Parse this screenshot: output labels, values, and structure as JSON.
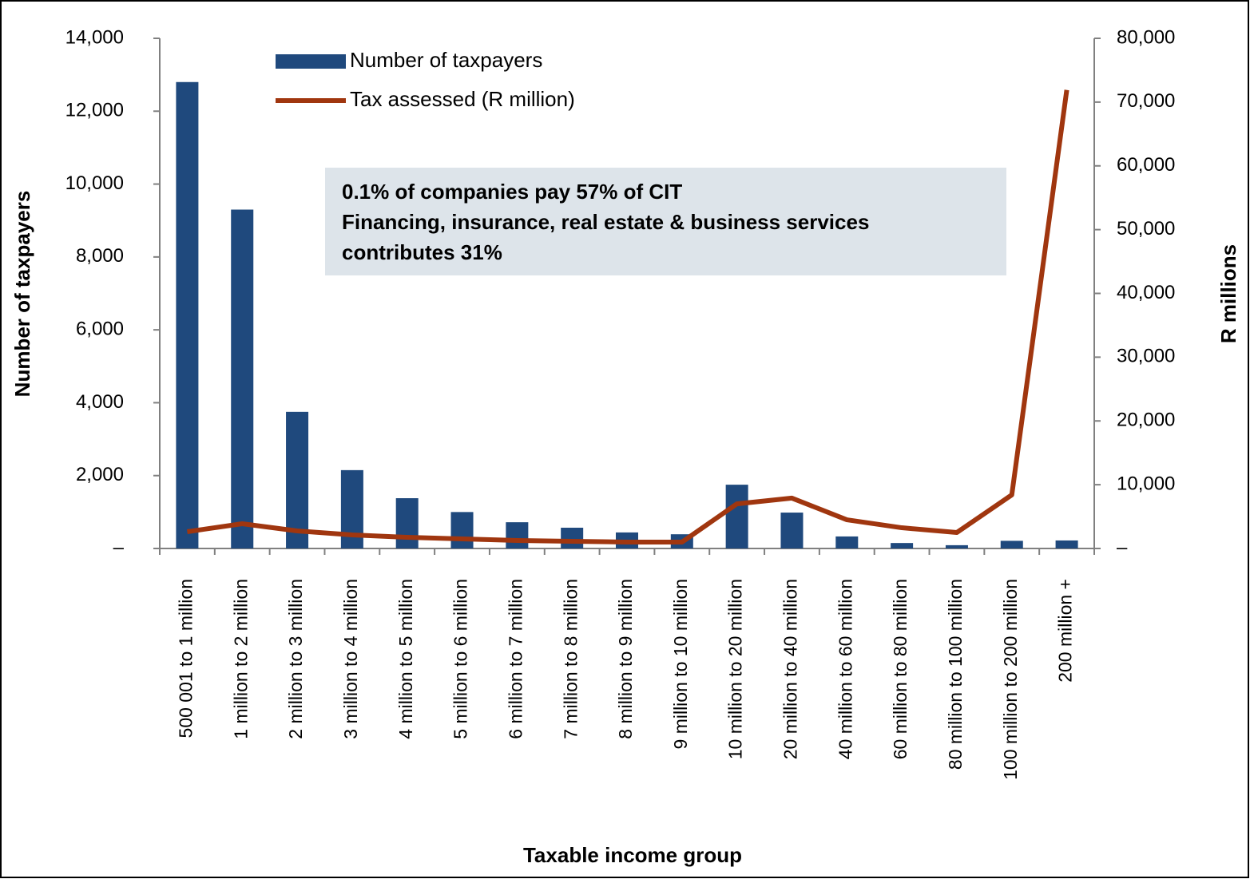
{
  "chart_data": {
    "type": "bar_line",
    "x_label": "Taxable income group",
    "y_label": "Number of taxpayers",
    "y2_label": "R millions",
    "annotations": [
      "0.1% of companies pay 57% of CIT",
      "Financing, insurance, real estate & business services",
      "contributes 31%"
    ],
    "categories": [
      "500 001 to 1 million",
      "1 million to 2 million",
      "2 million to 3 million",
      "3 million to 4 million",
      "4 million to 5 million",
      "5 million to 6 million",
      "6 million to 7 million",
      "7 million to 8 million",
      "8 million to 9 million",
      "9 million to 10 million",
      "10 million to 20 million",
      "20 million to 40 million",
      "40 million to 60 million",
      "60 million to 80 million",
      "80 million to 100 million",
      "100 million to 200 million",
      "200 million  +"
    ],
    "series": [
      {
        "name": "Number of taxpayers",
        "type": "bar",
        "color": "#1f497d",
        "values": [
          12800,
          9300,
          3750,
          2150,
          1380,
          1000,
          720,
          570,
          440,
          390,
          1750,
          985,
          330,
          150,
          90,
          210,
          220
        ]
      },
      {
        "name": "Tax assessed (R million)",
        "type": "line",
        "axis": "y2",
        "color": "#a0360f",
        "values": [
          2630,
          3880,
          2750,
          2130,
          1750,
          1500,
          1250,
          1130,
          1000,
          1000,
          7000,
          7900,
          4500,
          3250,
          2500,
          8400,
          71900
        ]
      }
    ],
    "ylim": [
      0,
      14000
    ],
    "yticks": [
      {
        "value": 0,
        "label": "–"
      },
      {
        "value": 2000,
        "label": "2,000"
      },
      {
        "value": 4000,
        "label": "4,000"
      },
      {
        "value": 6000,
        "label": "6,000"
      },
      {
        "value": 8000,
        "label": "8,000"
      },
      {
        "value": 10000,
        "label": "10,000"
      },
      {
        "value": 12000,
        "label": "12,000"
      },
      {
        "value": 14000,
        "label": "14,000"
      }
    ],
    "y2lim": [
      0,
      80000
    ],
    "y2ticks": [
      {
        "value": 0,
        "label": "–"
      },
      {
        "value": 10000,
        "label": "10,000"
      },
      {
        "value": 20000,
        "label": "20,000"
      },
      {
        "value": 30000,
        "label": "30,000"
      },
      {
        "value": 40000,
        "label": "40,000"
      },
      {
        "value": 50000,
        "label": "50,000"
      },
      {
        "value": 60000,
        "label": "60,000"
      },
      {
        "value": 70000,
        "label": "70,000"
      },
      {
        "value": 80000,
        "label": "80,000"
      }
    ]
  }
}
